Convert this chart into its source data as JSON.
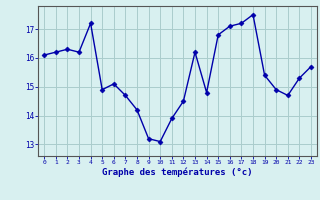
{
  "x": [
    0,
    1,
    2,
    3,
    4,
    5,
    6,
    7,
    8,
    9,
    10,
    11,
    12,
    13,
    14,
    15,
    16,
    17,
    18,
    19,
    20,
    21,
    22,
    23
  ],
  "y": [
    16.1,
    16.2,
    16.3,
    16.2,
    17.2,
    14.9,
    15.1,
    14.7,
    14.2,
    13.2,
    13.1,
    13.9,
    14.5,
    16.2,
    14.8,
    16.8,
    17.1,
    17.2,
    17.5,
    15.4,
    14.9,
    14.7,
    15.3,
    15.7
  ],
  "xlabel": "Graphe des températures (°c)",
  "ylabel_ticks": [
    13,
    14,
    15,
    16,
    17
  ],
  "xlim": [
    -0.5,
    23.5
  ],
  "ylim": [
    12.6,
    17.8
  ],
  "bg_color": "#d8f0f0",
  "grid_color": "#aacccc",
  "line_color": "#0000aa",
  "marker_color": "#0000aa",
  "axis_color": "#555555",
  "tick_label_color": "#0000aa",
  "xlabel_color": "#0000aa"
}
